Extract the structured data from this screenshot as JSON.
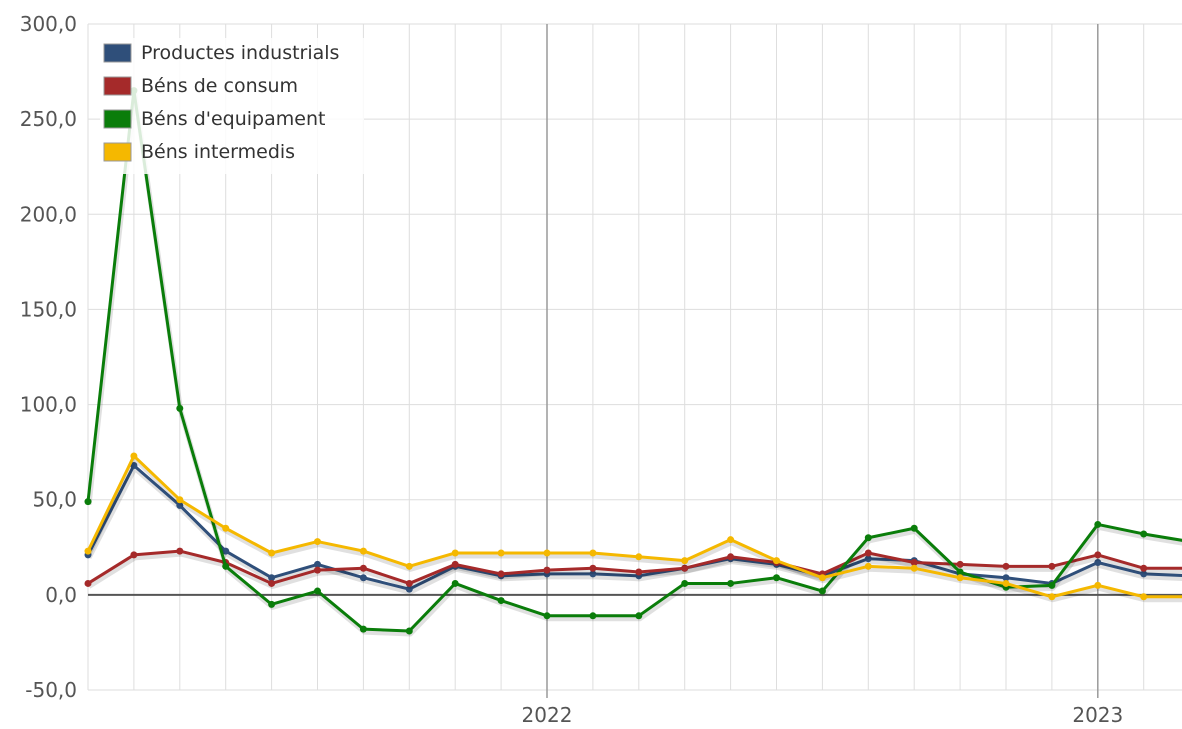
{
  "chart_data": {
    "type": "line",
    "title": "",
    "xlabel": "",
    "ylabel": "",
    "ylim": [
      -50,
      300
    ],
    "yticks": [
      -50,
      0,
      50,
      100,
      150,
      200,
      250,
      300
    ],
    "ytick_labels": [
      "-50,0",
      "0,0",
      "50,0",
      "100,0",
      "150,0",
      "200,0",
      "250,0",
      "300,0"
    ],
    "x_major_labels": [
      {
        "label": "2022",
        "index": 10
      },
      {
        "label": "2023",
        "index": 22
      }
    ],
    "grid": true,
    "legend_position": "top-left",
    "x": [
      "2021-03",
      "2021-04",
      "2021-05",
      "2021-06",
      "2021-07",
      "2021-08",
      "2021-09",
      "2021-10",
      "2021-11",
      "2021-12",
      "2022-01",
      "2022-02",
      "2022-03",
      "2022-04",
      "2022-05",
      "2022-06",
      "2022-07",
      "2022-08",
      "2022-09",
      "2022-10",
      "2022-11",
      "2022-12",
      "2023-01",
      "2023-02",
      "2023-03"
    ],
    "series": [
      {
        "name": "Productes industrials",
        "color": "#2f4f7a",
        "values": [
          21,
          68,
          47,
          23,
          9,
          16,
          9,
          3,
          15,
          10,
          11,
          11,
          10,
          14,
          19,
          16,
          10,
          19,
          18,
          11,
          9,
          6,
          17,
          11,
          10
        ]
      },
      {
        "name": "Béns de consum",
        "color": "#a52a2a",
        "values": [
          6,
          21,
          23,
          17,
          6,
          13,
          14,
          6,
          16,
          11,
          13,
          14,
          12,
          14,
          20,
          17,
          11,
          22,
          17,
          16,
          15,
          15,
          21,
          14,
          14
        ]
      },
      {
        "name": "Béns d'equipament",
        "color": "#0a7d0a",
        "values": [
          49,
          265,
          98,
          15,
          -5,
          2,
          -18,
          -19,
          6,
          -3,
          -11,
          -11,
          -11,
          6,
          6,
          9,
          2,
          30,
          35,
          12,
          4,
          5,
          37,
          32,
          28
        ]
      },
      {
        "name": "Béns intermedis",
        "color": "#f5b800",
        "values": [
          23,
          73,
          50,
          35,
          22,
          28,
          23,
          15,
          22,
          22,
          22,
          22,
          20,
          18,
          29,
          18,
          9,
          15,
          14,
          9,
          6,
          -1,
          5,
          -1,
          -1
        ]
      }
    ]
  }
}
